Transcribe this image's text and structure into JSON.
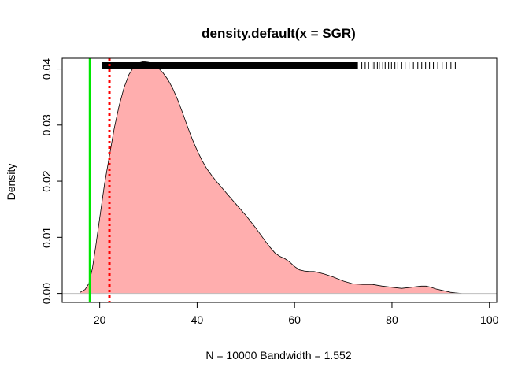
{
  "chart_data": {
    "type": "area",
    "title": "density.default(x = SGR)",
    "xlabel": "N = 10000   Bandwidth = 1.552",
    "ylabel": "Density",
    "xlim": [
      12.3,
      101.5
    ],
    "ylim": [
      -0.0016,
      0.0419
    ],
    "x_ticks": [
      {
        "value": 20,
        "label": "20"
      },
      {
        "value": 40,
        "label": "40"
      },
      {
        "value": 60,
        "label": "60"
      },
      {
        "value": 80,
        "label": "80"
      },
      {
        "value": 100,
        "label": "100"
      }
    ],
    "y_ticks": [
      {
        "value": 0.0,
        "label": "0.00"
      },
      {
        "value": 0.01,
        "label": "0.01"
      },
      {
        "value": 0.02,
        "label": "0.02"
      },
      {
        "value": 0.03,
        "label": "0.03"
      },
      {
        "value": 0.04,
        "label": "0.04"
      }
    ],
    "series": [
      {
        "fill": "#ffaeae",
        "stroke": "#000000",
        "x": [
          16.0,
          17.0,
          17.8,
          18.5,
          19.2,
          20.0,
          21.0,
          22.0,
          23.0,
          24.0,
          25.0,
          26.0,
          27.0,
          28.0,
          29.0,
          30.0,
          31.0,
          32.0,
          33.0,
          34.0,
          35.0,
          36.0,
          37.0,
          38.0,
          39.0,
          40.0,
          41.0,
          42.0,
          43.0,
          44.0,
          45.0,
          46.0,
          47.0,
          48.0,
          50.0,
          52.0,
          54.0,
          55.0,
          56.0,
          57.0,
          58.0,
          59.0,
          60.0,
          61.0,
          62.0,
          63.0,
          64.0,
          65.0,
          66.0,
          67.0,
          68.0,
          70.0,
          72.0,
          74.0,
          76.0,
          78.0,
          80.0,
          82.0,
          84.0,
          85.0,
          86.0,
          87.0,
          88.0,
          89.0,
          90.0,
          91.0,
          92.0,
          93.0,
          94.3
        ],
        "y": [
          0.0002,
          0.0007,
          0.0018,
          0.0045,
          0.0085,
          0.0135,
          0.0195,
          0.0245,
          0.0295,
          0.0335,
          0.0367,
          0.039,
          0.0404,
          0.0411,
          0.0413,
          0.0412,
          0.0408,
          0.0402,
          0.0393,
          0.0381,
          0.0365,
          0.0345,
          0.0322,
          0.0298,
          0.0275,
          0.0255,
          0.0237,
          0.0222,
          0.021,
          0.0199,
          0.0189,
          0.0179,
          0.0169,
          0.0159,
          0.0139,
          0.0117,
          0.0093,
          0.0082,
          0.0072,
          0.0066,
          0.0062,
          0.0056,
          0.0048,
          0.0042,
          0.004,
          0.0039,
          0.0039,
          0.0037,
          0.0035,
          0.0032,
          0.0029,
          0.0022,
          0.0017,
          0.0016,
          0.0016,
          0.0013,
          0.0011,
          0.0009,
          0.0011,
          0.0012,
          0.0013,
          0.0013,
          0.0011,
          0.0008,
          0.0006,
          0.0004,
          0.0002,
          0.0001,
          0.0
        ]
      }
    ],
    "reference_lines": [
      {
        "x": 18.0,
        "color": "#00e600",
        "style": "solid"
      },
      {
        "x": 22.0,
        "color": "#ff0000",
        "style": "dotted"
      }
    ],
    "zero_line_color": "#bebebe",
    "rug": {
      "color": "#000000",
      "dense_from": 20.5,
      "dense_to": 73.0,
      "sparse": [
        73.8,
        74.5,
        75.2,
        75.9,
        76.3,
        77.0,
        77.4,
        78.1,
        78.6,
        79.3,
        79.9,
        80.6,
        81.2,
        82.0,
        82.7,
        83.5,
        84.4,
        85.3,
        86.1,
        86.9,
        87.7,
        88.5,
        89.4,
        90.3,
        91.2,
        92.1,
        93.0
      ]
    },
    "grid": false,
    "legend": "none"
  }
}
